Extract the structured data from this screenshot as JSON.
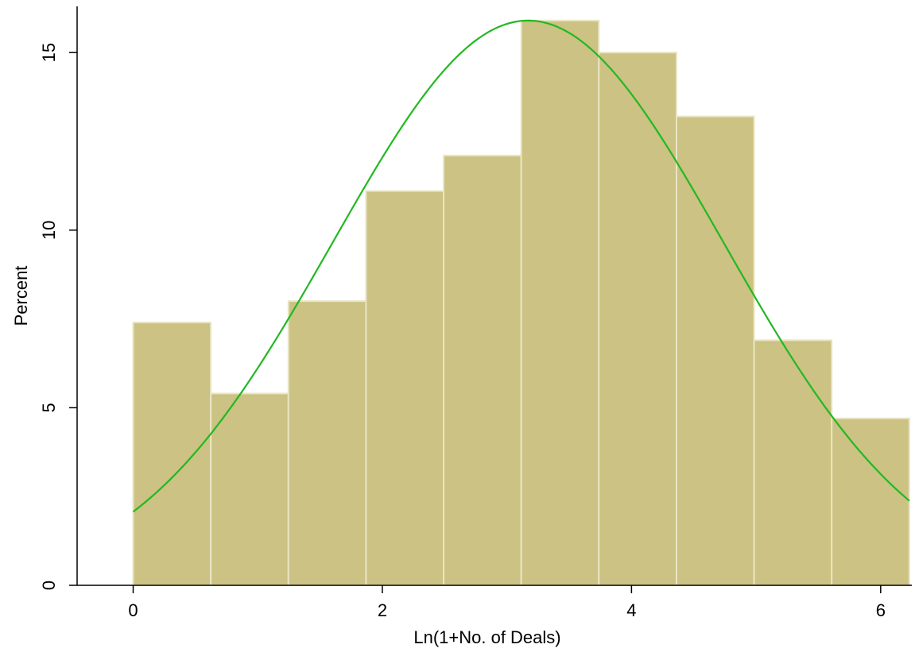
{
  "chart_data": {
    "type": "bar",
    "subtype": "histogram_with_normal_density",
    "title": "",
    "xlabel": "Ln(1+No. of Deals)",
    "ylabel": "Percent",
    "xlim": [
      -0.45,
      6.25
    ],
    "ylim": [
      0,
      16.3
    ],
    "x_ticks": [
      0,
      2,
      4,
      6
    ],
    "y_ticks": [
      0,
      5,
      10,
      15
    ],
    "x_tick_labels": [
      "0",
      "2",
      "4",
      "6"
    ],
    "y_tick_labels": [
      "0",
      "5",
      "10",
      "15"
    ],
    "grid": false,
    "legend": "none",
    "bins": [
      {
        "x0": 0.0,
        "x1": 0.623,
        "value": 7.4
      },
      {
        "x0": 0.623,
        "x1": 1.246,
        "value": 5.4
      },
      {
        "x0": 1.246,
        "x1": 1.869,
        "value": 8.0
      },
      {
        "x0": 1.869,
        "x1": 2.492,
        "value": 11.1
      },
      {
        "x0": 2.492,
        "x1": 3.115,
        "value": 12.1
      },
      {
        "x0": 3.115,
        "x1": 3.738,
        "value": 15.9
      },
      {
        "x0": 3.738,
        "x1": 4.361,
        "value": 15.0
      },
      {
        "x0": 4.361,
        "x1": 4.984,
        "value": 13.2
      },
      {
        "x0": 4.984,
        "x1": 5.607,
        "value": 6.9
      },
      {
        "x0": 5.607,
        "x1": 6.23,
        "value": 4.7
      }
    ],
    "normal_curve": {
      "mean": 3.17,
      "sd": 1.57,
      "peak_percent": 15.9,
      "x_range": [
        0,
        6.23
      ]
    },
    "colors": {
      "bar_fill": "#cbc283",
      "bar_edge": "#e9e5c4",
      "curve": "#22b822",
      "axis": "#000000"
    }
  }
}
